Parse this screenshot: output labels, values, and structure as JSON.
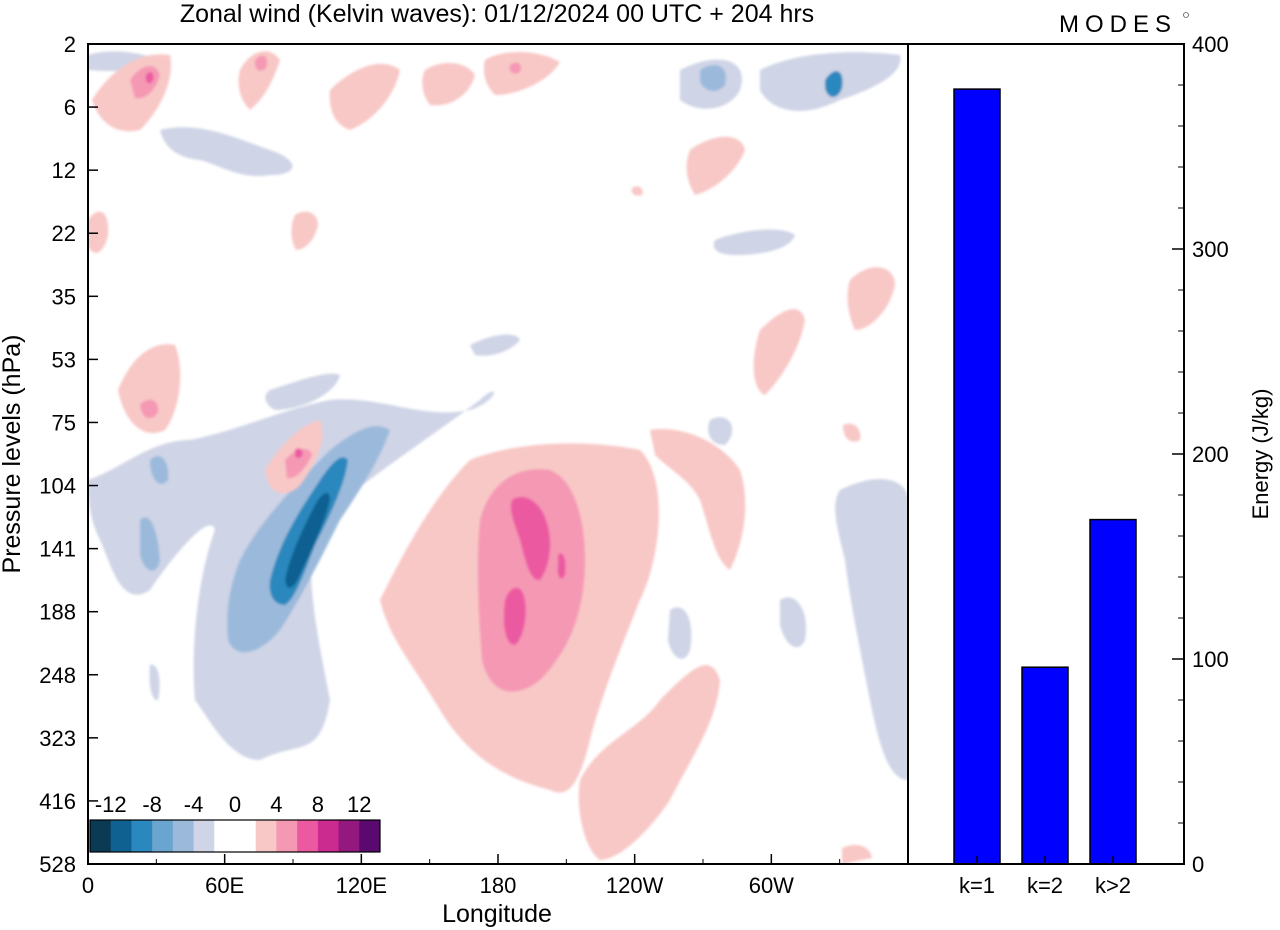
{
  "title": "Zonal wind (Kelvin waves):  01/12/2024  00 UTC  + 204 hrs",
  "logo": "MODES",
  "left_panel": {
    "xlabel": "Longitude",
    "ylabel": "Pressure levels (hPa)",
    "x_ticks": [
      "0",
      "60E",
      "120E",
      "180",
      "120W",
      "60W"
    ],
    "y_ticks": [
      "2",
      "6",
      "12",
      "22",
      "35",
      "53",
      "75",
      "104",
      "141",
      "188",
      "248",
      "323",
      "416",
      "528"
    ],
    "colorbar": {
      "labels": [
        "-12",
        "-8",
        "-4",
        "0",
        "4",
        "8",
        "12"
      ],
      "colors": [
        "#0b3a55",
        "#0e6191",
        "#2b88be",
        "#6aa5cf",
        "#9bbadb",
        "#cfd4e6",
        "#ffffff",
        "#ffffff",
        "#f8c8c6",
        "#f598b4",
        "#eb5aa1",
        "#cb2a8f",
        "#93197e",
        "#5a0a6e"
      ]
    }
  },
  "right_panel": {
    "ylabel": "Energy (J/kg)"
  },
  "chart_data": [
    {
      "type": "heatmap",
      "title": "Zonal wind (Kelvin waves):  01/12/2024  00 UTC  + 204 hrs",
      "xlabel": "Longitude",
      "ylabel": "Pressure levels (hPa)",
      "x_ticks": [
        "0",
        "60E",
        "120E",
        "180",
        "120W",
        "60W"
      ],
      "y_ticks": [
        "2",
        "6",
        "12",
        "22",
        "35",
        "53",
        "75",
        "104",
        "141",
        "188",
        "248",
        "323",
        "416",
        "528"
      ],
      "contour_levels": [
        -12,
        -8,
        -4,
        0,
        4,
        8,
        12
      ],
      "features": [
        {
          "name": "negative anomaly core",
          "lon_range": [
            35,
            110
          ],
          "pressure_range": [
            90,
            260
          ],
          "min_value": -10
        },
        {
          "name": "positive anomaly core",
          "lon_range": [
            165,
            205
          ],
          "pressure_range": [
            100,
            260
          ],
          "max_value": 8
        }
      ]
    },
    {
      "type": "bar",
      "categories": [
        "k=1",
        "k=2",
        "k>2"
      ],
      "values": [
        378,
        96,
        168
      ],
      "ylabel": "Energy (J/kg)",
      "ylim": [
        0,
        400
      ],
      "y_ticks": [
        0,
        100,
        200,
        300,
        400
      ],
      "bar_color": "#0000ff"
    }
  ]
}
